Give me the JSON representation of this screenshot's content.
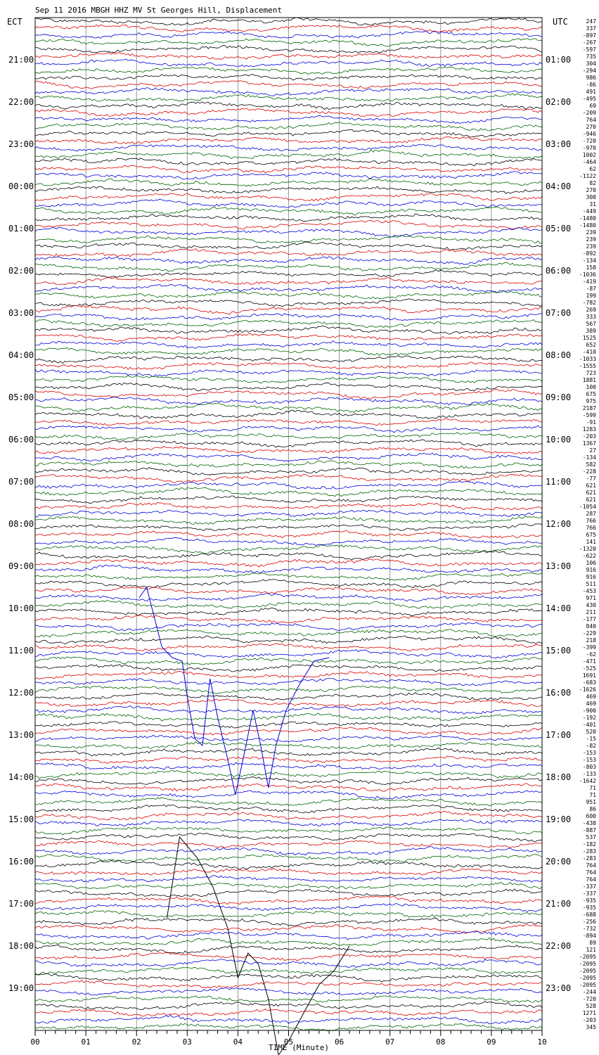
{
  "chart_data": {
    "type": "line",
    "title": "Sep 11 2016 MBGH HHZ MV St Georges Hill, Displacement",
    "left_axis_label": "ECT",
    "right_axis_label": "UTC",
    "xlabel": "TIME (Minute)",
    "x_ticks": [
      "00",
      "01",
      "02",
      "03",
      "04",
      "05",
      "06",
      "07",
      "08",
      "09",
      "10"
    ],
    "xlim": [
      0,
      10
    ],
    "left_time_labels": [
      "21:00",
      "22:00",
      "23:00",
      "00:00",
      "01:00",
      "02:00",
      "03:00",
      "04:00",
      "05:00",
      "06:00",
      "07:00",
      "08:00",
      "09:00",
      "10:00",
      "11:00",
      "12:00",
      "13:00",
      "14:00",
      "15:00",
      "16:00",
      "17:00",
      "18:00",
      "19:00"
    ],
    "right_time_labels": [
      "01:00",
      "02:00",
      "03:00",
      "04:00",
      "05:00",
      "06:00",
      "07:00",
      "08:00",
      "09:00",
      "10:00",
      "11:00",
      "12:00",
      "13:00",
      "14:00",
      "15:00",
      "16:00",
      "17:00",
      "18:00",
      "19:00",
      "20:00",
      "21:00",
      "22:00",
      "23:00"
    ],
    "trace_colors": [
      "#000000",
      "#dd0000",
      "#0000dd",
      "#006600"
    ],
    "trace_count": 144,
    "minutes_per_trace": 10,
    "trace_offsets": [
      "247",
      "337",
      "-897",
      "-267",
      "-597",
      "735",
      "304",
      "-294",
      "986",
      "-86",
      "491",
      "-495",
      "69",
      "-209",
      "764",
      "270",
      "-946",
      "-720",
      "-970",
      "1002",
      "-464",
      "62",
      "-1122",
      "82",
      "270",
      "308",
      "31",
      "-449",
      "-1480",
      "-1480",
      "239",
      "239",
      "239",
      "-892",
      "-134",
      "158",
      "-1036",
      "-419",
      "-87",
      "199",
      "-782",
      "269",
      "333",
      "567",
      "389",
      "1525",
      "652",
      "-410",
      "-1033",
      "-1555",
      "723",
      "1881",
      "100",
      "675",
      "975",
      "2187",
      "-599",
      "-91",
      "1283",
      "-203",
      "1367",
      "27",
      "-134",
      "582",
      "-228",
      "-77",
      "621",
      "621",
      "621",
      "-1054",
      "287",
      "766",
      "766",
      "675",
      "141",
      "-1320",
      "-622",
      "106",
      "916",
      "916",
      "511",
      "-453",
      "971",
      "430",
      "211",
      "-177",
      "840",
      "-229",
      "218",
      "-399",
      "-62",
      "-471",
      "-525",
      "1691",
      "-683",
      "-1626",
      "469",
      "469",
      "-900",
      "-192",
      "-401",
      "520",
      "-15",
      "-82",
      "-153",
      "-153",
      "-803",
      "-133",
      "-1642",
      "71",
      "71",
      "951",
      "86",
      "600",
      "-438",
      "-887",
      "537",
      "-182",
      "-283",
      "-283",
      "764",
      "764",
      "764",
      "-337",
      "-337",
      "-935",
      "-935",
      "-688",
      "-256",
      "-732",
      "-894",
      "89",
      "121",
      "-2095",
      "-2095",
      "-2095",
      "-2095",
      "-2095",
      "-244",
      "-720",
      "528",
      "1271",
      "-203",
      "345"
    ]
  }
}
